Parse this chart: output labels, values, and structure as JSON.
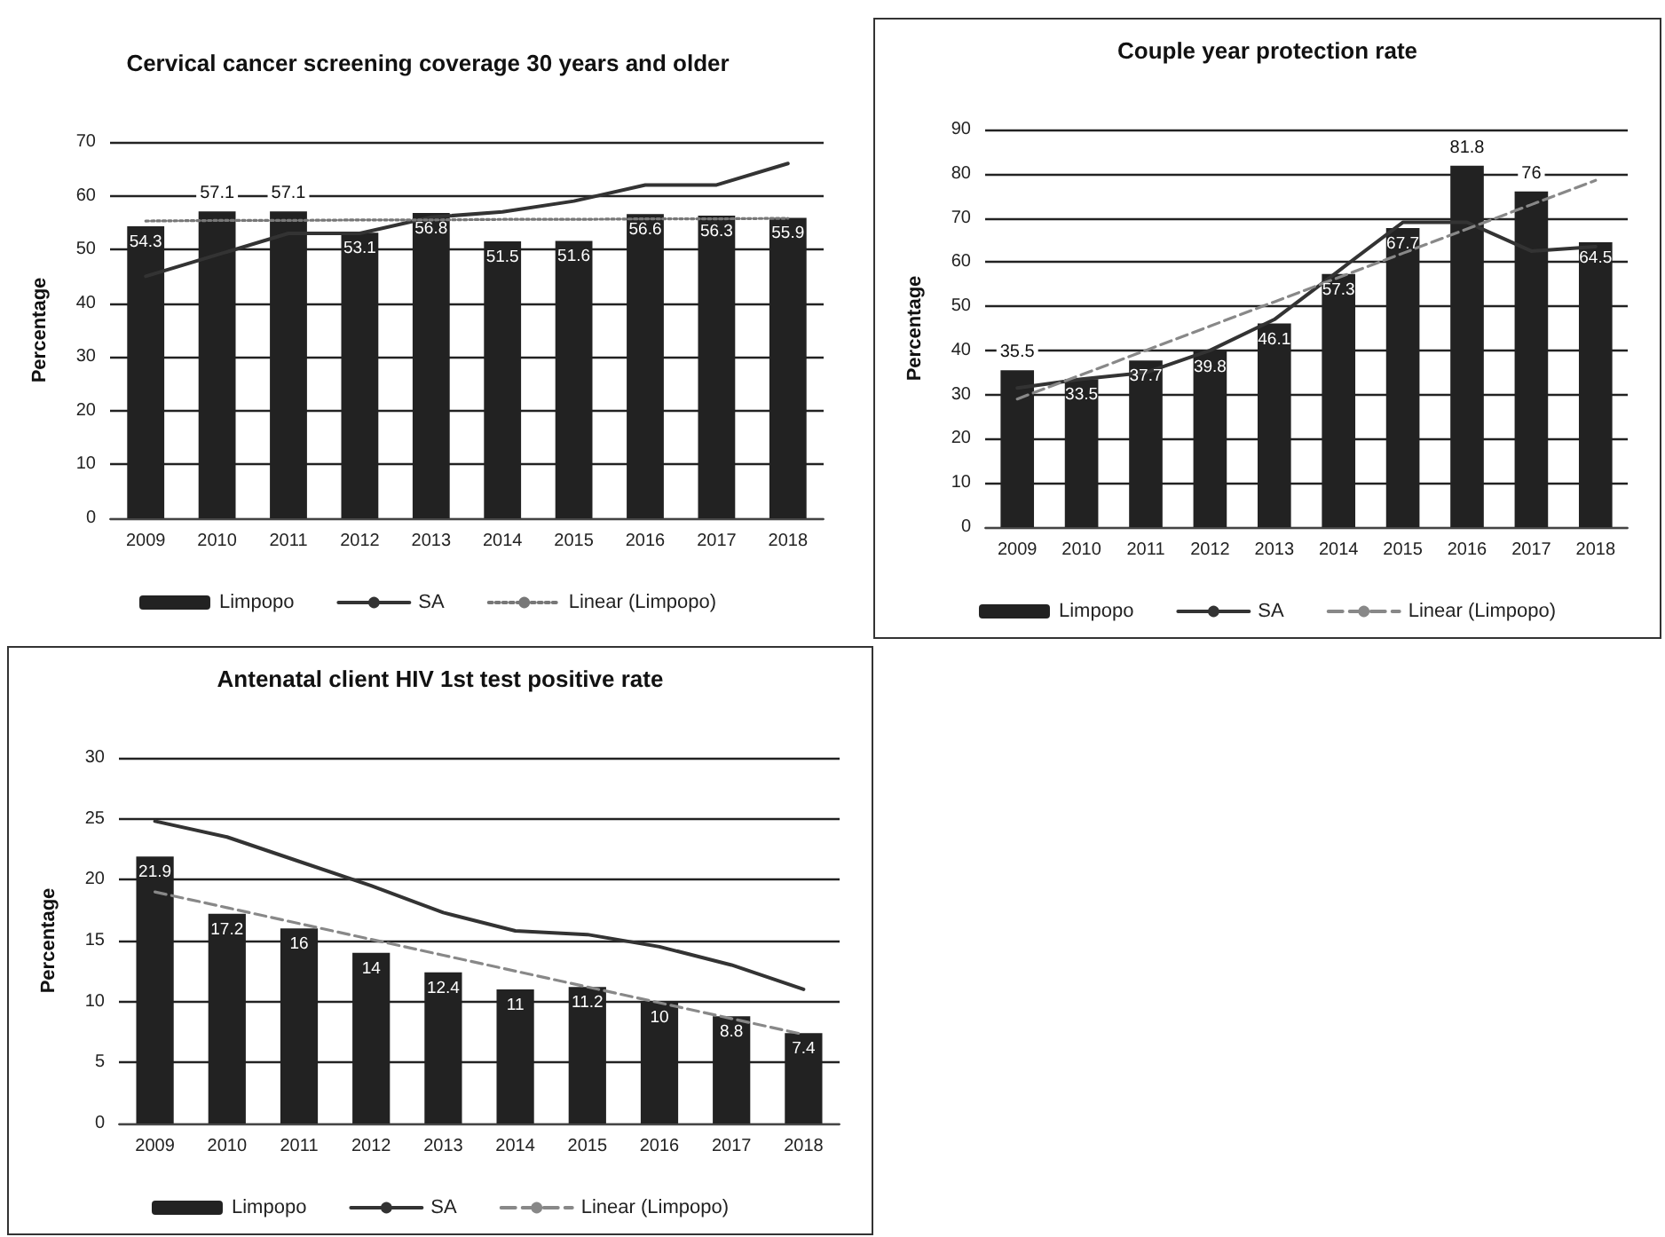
{
  "chart_data": [
    {
      "type": "bar",
      "title": "Cervical cancer screening coverage 30 years and older",
      "ylabel": "Percentage",
      "categories": [
        "2009",
        "2010",
        "2011",
        "2012",
        "2013",
        "2014",
        "2015",
        "2016",
        "2017",
        "2018"
      ],
      "ylim": [
        0,
        70
      ],
      "yticks": [
        0,
        10,
        20,
        30,
        40,
        50,
        60,
        70
      ],
      "grid": "y",
      "legend": "bottom",
      "series": [
        {
          "name": "Limpopo",
          "type": "bar",
          "color": "#222222",
          "values": [
            54.3,
            57.1,
            57.1,
            53.1,
            56.8,
            51.5,
            51.6,
            56.6,
            56.3,
            55.9
          ],
          "value_labels": [
            "54.3",
            "57.1",
            "57.1",
            "53.1",
            "56.8",
            "51.5",
            "51.6",
            "56.6",
            "56.3",
            "55.9"
          ]
        },
        {
          "name": "SA",
          "type": "line",
          "color": "#333333",
          "line_style": "solid",
          "values": [
            45,
            49,
            53,
            53,
            56,
            57,
            59,
            62,
            62,
            66
          ]
        },
        {
          "name": "Linear (Limpopo)",
          "type": "line",
          "color": "#777777",
          "line_style": "dotted",
          "values": [
            55.3,
            55.4,
            55.4,
            55.5,
            55.5,
            55.6,
            55.6,
            55.7,
            55.7,
            55.8
          ]
        }
      ]
    },
    {
      "type": "bar",
      "title": "Couple year protection rate",
      "ylabel": "Percentage",
      "categories": [
        "2009",
        "2010",
        "2011",
        "2012",
        "2013",
        "2014",
        "2015",
        "2016",
        "2017",
        "2018"
      ],
      "ylim": [
        0,
        90
      ],
      "yticks": [
        0,
        10,
        20,
        30,
        40,
        50,
        60,
        70,
        80,
        90
      ],
      "grid": "y",
      "legend": "bottom",
      "series": [
        {
          "name": "Limpopo",
          "type": "bar",
          "color": "#222222",
          "values": [
            35.5,
            33.5,
            37.7,
            39.8,
            46.1,
            57.3,
            67.7,
            81.8,
            76,
            64.5
          ],
          "value_labels": [
            "35.5",
            "33.5",
            "37.7",
            "39.8",
            "46.1",
            "57.3",
            "67.7",
            "81.8",
            "76",
            "64.5"
          ]
        },
        {
          "name": "SA",
          "type": "line",
          "color": "#333333",
          "line_style": "solid",
          "values": [
            31.5,
            33.5,
            35,
            40,
            47,
            58,
            69,
            69,
            62.5,
            63.5
          ]
        },
        {
          "name": "Linear (Limpopo)",
          "type": "line",
          "color": "#888888",
          "line_style": "dashed",
          "values": [
            29,
            34.5,
            40,
            45.5,
            51,
            56.5,
            62,
            67.5,
            73,
            78.5
          ]
        }
      ]
    },
    {
      "type": "bar",
      "title": "Antenatal client HIV 1st test positive rate",
      "ylabel": "Percentage",
      "categories": [
        "2009",
        "2010",
        "2011",
        "2012",
        "2013",
        "2014",
        "2015",
        "2016",
        "2017",
        "2018"
      ],
      "ylim": [
        0,
        30
      ],
      "yticks": [
        0,
        5,
        10,
        15,
        20,
        25,
        30
      ],
      "grid": "y",
      "legend": "bottom",
      "series": [
        {
          "name": "Limpopo",
          "type": "bar",
          "color": "#222222",
          "values": [
            21.9,
            17.2,
            16,
            14,
            12.4,
            11,
            11.2,
            10,
            8.8,
            7.4
          ],
          "value_labels": [
            "21.9",
            "17.2",
            "16",
            "14",
            "12.4",
            "11",
            "11.2",
            "10",
            "8.8",
            "7.4"
          ]
        },
        {
          "name": "SA",
          "type": "line",
          "color": "#333333",
          "line_style": "solid",
          "values": [
            24.8,
            23.5,
            21.5,
            19.5,
            17.3,
            15.8,
            15.5,
            14.5,
            13,
            11
          ]
        },
        {
          "name": "Linear (Limpopo)",
          "type": "line",
          "color": "#888888",
          "line_style": "dashed",
          "values": [
            19,
            17.7,
            16.4,
            15.1,
            13.8,
            12.5,
            11.2,
            9.9,
            8.6,
            7.3
          ]
        }
      ]
    }
  ]
}
